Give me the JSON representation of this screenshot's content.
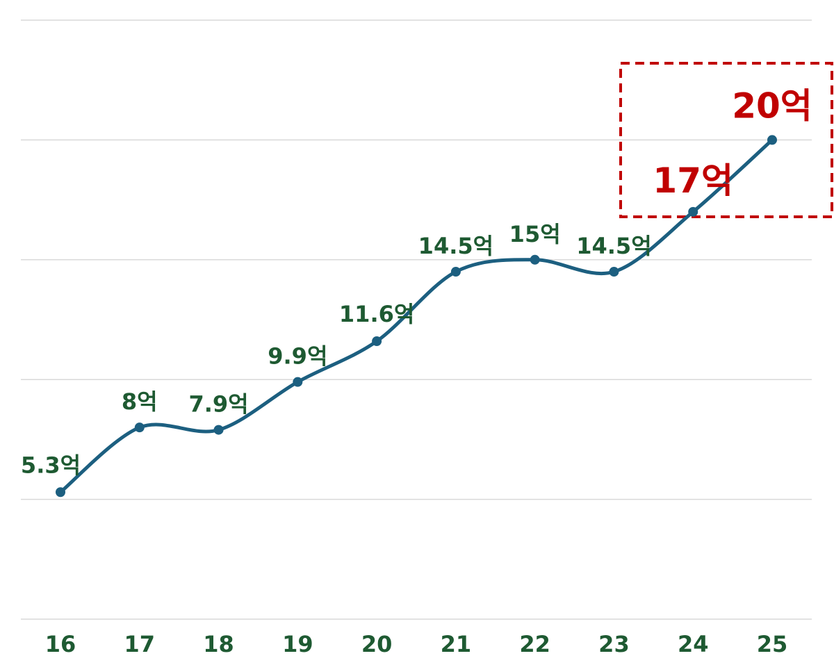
{
  "chart_data": {
    "type": "line",
    "smooth": true,
    "categories": [
      "16",
      "17",
      "18",
      "19",
      "20",
      "21",
      "22",
      "23",
      "24",
      "25"
    ],
    "values": [
      5.3,
      8,
      7.9,
      9.9,
      11.6,
      14.5,
      15,
      14.5,
      17,
      20
    ],
    "data_labels": [
      "5.3억",
      "8억",
      "7.9억",
      "9.9억",
      "11.6억",
      "14.5억",
      "15억",
      "14.5억",
      "17억",
      "20억"
    ],
    "highlight_indices": [
      8,
      9
    ],
    "ylim": [
      0,
      25
    ],
    "grid": true,
    "title": "",
    "xlabel": "",
    "ylabel": "",
    "colors": {
      "line": "#1c5f80",
      "label": "#1e5a32",
      "highlight": "#c00000",
      "grid": "#d9d9d9"
    }
  }
}
